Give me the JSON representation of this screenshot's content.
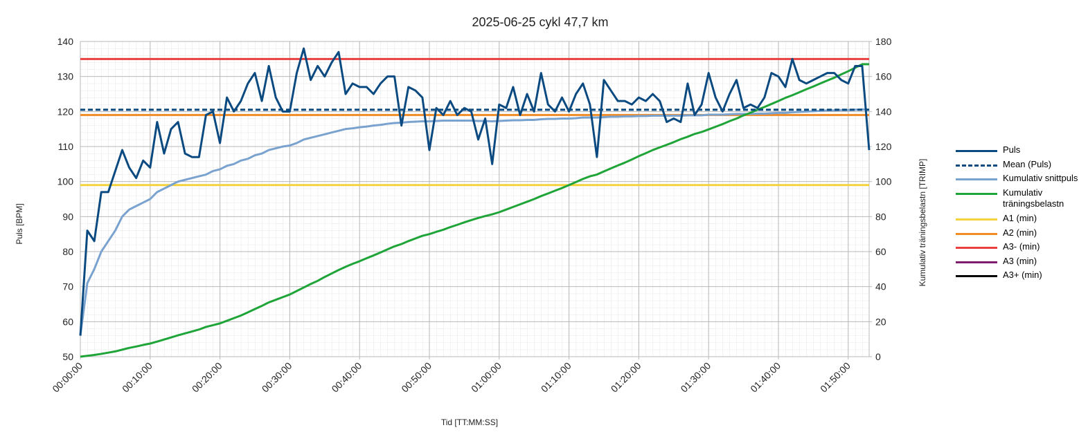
{
  "chart_data": {
    "type": "line",
    "title": "2025-06-25 cykl 47,7 km",
    "x_label": "Tid [TT:MM:SS]",
    "y_label": "Puls [BPM]",
    "y2_label": "Kumulativ träningsbelastn [TRIMP]",
    "x": [
      0,
      1,
      2,
      3,
      4,
      5,
      6,
      7,
      8,
      9,
      10,
      11,
      12,
      13,
      14,
      15,
      16,
      17,
      18,
      19,
      20,
      21,
      22,
      23,
      24,
      25,
      26,
      27,
      28,
      29,
      30,
      31,
      32,
      33,
      34,
      35,
      36,
      37,
      38,
      39,
      40,
      41,
      42,
      43,
      44,
      45,
      46,
      47,
      48,
      49,
      50,
      51,
      52,
      53,
      54,
      55,
      56,
      57,
      58,
      59,
      60,
      61,
      62,
      63,
      64,
      65,
      66,
      67,
      68,
      69,
      70,
      71,
      72,
      73,
      74,
      75,
      76,
      77,
      78,
      79,
      80,
      81,
      82,
      83,
      84,
      85,
      86,
      87,
      88,
      89,
      90,
      91,
      92,
      93,
      94,
      95,
      96,
      97,
      98,
      99,
      100,
      101,
      102,
      103,
      104,
      105,
      106,
      107,
      108,
      109,
      110,
      111,
      112,
      113
    ],
    "xlim": [
      0,
      113
    ],
    "xticks": [
      {
        "value": 0,
        "label": "00:00:00"
      },
      {
        "value": 10,
        "label": "00:10:00"
      },
      {
        "value": 20,
        "label": "00:20:00"
      },
      {
        "value": 30,
        "label": "00:30:00"
      },
      {
        "value": 40,
        "label": "00:40:00"
      },
      {
        "value": 50,
        "label": "00:50:00"
      },
      {
        "value": 60,
        "label": "01:00:00"
      },
      {
        "value": 70,
        "label": "01:10:00"
      },
      {
        "value": 80,
        "label": "01:20:00"
      },
      {
        "value": 90,
        "label": "01:30:00"
      },
      {
        "value": 100,
        "label": "01:40:00"
      },
      {
        "value": 110,
        "label": "01:50:00"
      }
    ],
    "ylim": [
      50,
      140
    ],
    "yticks": [
      50,
      60,
      70,
      80,
      90,
      100,
      110,
      120,
      130,
      140
    ],
    "y2lim": [
      0,
      180
    ],
    "y2ticks": [
      0,
      20,
      40,
      60,
      80,
      100,
      120,
      140,
      160,
      180
    ],
    "grid": true,
    "legend": "right",
    "series": [
      {
        "name": "Puls",
        "color": "#0b4a80",
        "values": [
          56,
          86,
          83,
          97,
          97,
          103,
          109,
          104,
          101,
          106,
          104,
          117,
          108,
          115,
          117,
          108,
          107,
          107,
          119,
          120,
          111,
          124,
          120,
          123,
          128,
          131,
          123,
          133,
          124,
          120,
          120,
          131,
          138,
          129,
          133,
          130,
          134,
          137,
          125,
          128,
          127,
          127,
          125,
          128,
          130,
          130,
          116,
          127,
          126,
          124,
          109,
          121,
          119,
          123,
          119,
          121,
          120,
          112,
          118,
          105,
          122,
          121,
          127,
          119,
          125,
          120,
          131,
          122,
          120,
          124,
          120,
          125,
          128,
          122,
          107,
          129,
          126,
          123,
          123,
          122,
          124,
          123,
          125,
          123,
          117,
          118,
          117,
          128,
          119,
          122,
          131,
          124,
          120,
          125,
          129,
          121,
          122,
          121,
          124,
          131,
          130,
          127,
          135,
          129,
          128,
          129,
          130,
          131,
          131,
          129,
          128,
          133,
          133,
          109
        ]
      },
      {
        "name": "Mean (Puls)",
        "color": "#0b4a80",
        "dashed": true,
        "value": 120.5
      },
      {
        "name": "Kumulativ snittpuls",
        "color": "#7aa2cf",
        "values": [
          56,
          71,
          75,
          80,
          83,
          86,
          90,
          92,
          93,
          94,
          95,
          97,
          98,
          99,
          100,
          100.5,
          101,
          101.5,
          102,
          103,
          103.5,
          104.5,
          105,
          106,
          106.5,
          107.5,
          108,
          109,
          109.5,
          110,
          110.3,
          111,
          112,
          112.5,
          113,
          113.5,
          114,
          114.5,
          115,
          115.2,
          115.5,
          115.7,
          116,
          116.2,
          116.5,
          116.7,
          116.8,
          117,
          117.1,
          117.2,
          117.2,
          117.3,
          117.4,
          117.4,
          117.4,
          117.4,
          117.4,
          117.3,
          117.3,
          117.2,
          117.3,
          117.4,
          117.5,
          117.5,
          117.6,
          117.6,
          117.8,
          117.9,
          117.9,
          118,
          118,
          118.1,
          118.3,
          118.3,
          118.3,
          118.4,
          118.5,
          118.5,
          118.6,
          118.6,
          118.7,
          118.7,
          118.8,
          118.8,
          118.8,
          118.8,
          118.8,
          118.9,
          118.9,
          118.9,
          119.1,
          119.1,
          119.1,
          119.2,
          119.3,
          119.3,
          119.3,
          119.4,
          119.4,
          119.5,
          119.6,
          119.6,
          119.8,
          119.9,
          120,
          120.1,
          120.2,
          120.3,
          120.3,
          120.4,
          120.4,
          120.5,
          120.6,
          120.5
        ]
      },
      {
        "name": "Kumulativ träningsbelastn",
        "color": "#1ea437",
        "axis": "y2",
        "values": [
          0,
          0.5,
          1,
          1.6,
          2.3,
          3,
          4,
          5,
          5.8,
          6.7,
          7.5,
          8.6,
          9.8,
          11,
          12.2,
          13.3,
          14.4,
          15.5,
          17,
          18,
          19,
          20.5,
          22,
          23.5,
          25.3,
          27.2,
          29,
          31,
          32.5,
          34,
          35.5,
          37.5,
          39.5,
          41.5,
          43.3,
          45.5,
          47.5,
          49.5,
          51.3,
          53,
          54.5,
          56.2,
          57.8,
          59.5,
          61.3,
          63,
          64.3,
          66,
          67.5,
          69,
          70,
          71.3,
          72.5,
          74,
          75.3,
          76.7,
          78,
          79.2,
          80.3,
          81.3,
          82.5,
          84,
          85.5,
          87,
          88.5,
          90,
          91.7,
          93.2,
          94.8,
          96.3,
          98,
          99.7,
          101.5,
          103,
          104,
          105.8,
          107.5,
          109.2,
          110.8,
          112.6,
          114.5,
          116.2,
          118,
          119.5,
          121,
          122.5,
          124.2,
          125.6,
          127.2,
          128.3,
          129.8,
          131.3,
          132.8,
          134.5,
          136,
          137.8,
          139.3,
          141,
          142.6,
          144.3,
          146,
          147.8,
          149.3,
          151,
          152.7,
          154.3,
          156,
          157.7,
          159.3,
          161.2,
          163,
          165,
          167,
          167
        ]
      },
      {
        "name": "A1 (min)",
        "color": "#f4d23c",
        "value": 99
      },
      {
        "name": "A2 (min)",
        "color": "#f08b26",
        "value": 119
      },
      {
        "name": "A3- (min)",
        "color": "#e8403f",
        "value": 135
      },
      {
        "name": "A3 (min)",
        "color": "#7d1d6b"
      },
      {
        "name": "A3+ (min)",
        "color": "#000000"
      }
    ]
  }
}
